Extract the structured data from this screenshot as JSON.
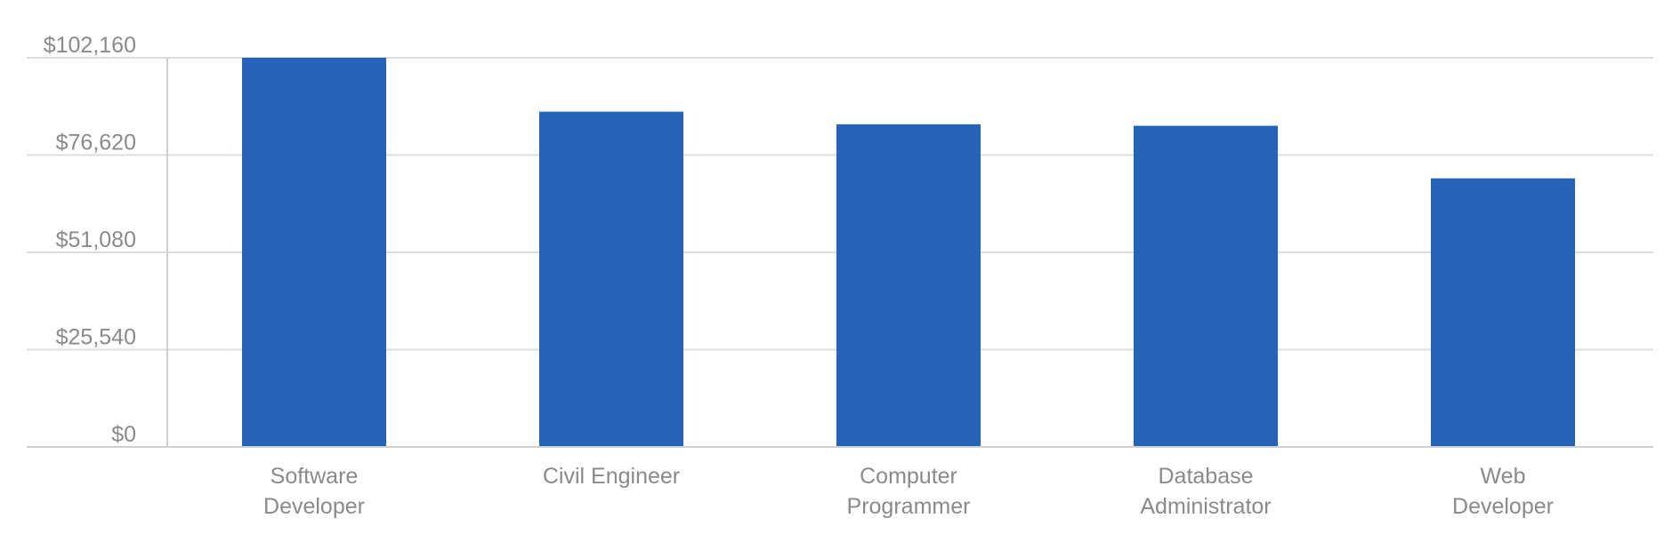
{
  "chart_data": {
    "type": "bar",
    "title": "",
    "xlabel": "",
    "ylabel": "",
    "categories": [
      [
        "Software",
        "Developer"
      ],
      [
        "Civil Engineer"
      ],
      [
        "Computer",
        "Programmer"
      ],
      [
        "Database",
        "Administrator"
      ],
      [
        "Web",
        "Developer"
      ]
    ],
    "values": [
      102160,
      88000,
      84700,
      84300,
      70500
    ],
    "ylim": [
      0,
      102160
    ],
    "yticks": [
      0,
      25540,
      51080,
      76620,
      102160
    ],
    "ytick_labels": [
      "$0",
      "$25,540",
      "$51,080",
      "$76,620",
      "$102,160"
    ],
    "bar_color": "#2563b9",
    "grid": true
  }
}
